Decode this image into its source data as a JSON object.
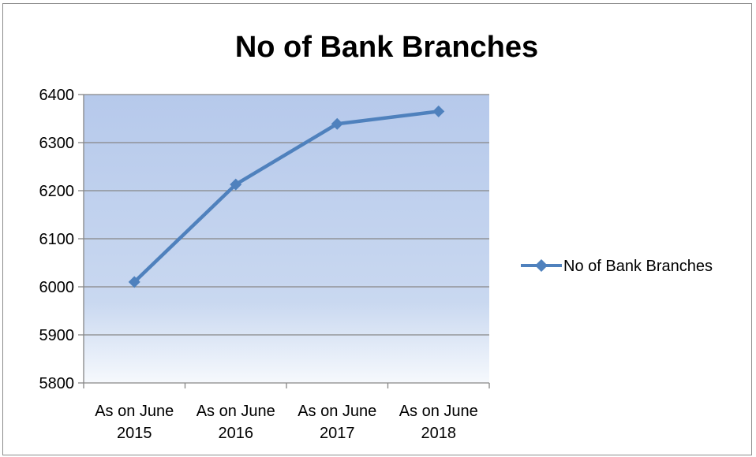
{
  "chart_data": {
    "type": "line",
    "title": "No of Bank Branches",
    "categories": [
      [
        "As on June",
        "2015"
      ],
      [
        "As on June",
        "2016"
      ],
      [
        "As on June",
        "2017"
      ],
      [
        "As on June",
        "2018"
      ]
    ],
    "series": [
      {
        "name": "No of Bank Branches",
        "values": [
          6010,
          6213,
          6339,
          6365
        ],
        "color": "#4f81bd",
        "marker": "diamond"
      }
    ],
    "ylim": [
      5800,
      6400
    ],
    "yticks": [
      5800,
      5900,
      6000,
      6100,
      6200,
      6300,
      6400
    ],
    "grid": true,
    "plot_fill": "gradient-light-blue",
    "legend_position": "right"
  }
}
